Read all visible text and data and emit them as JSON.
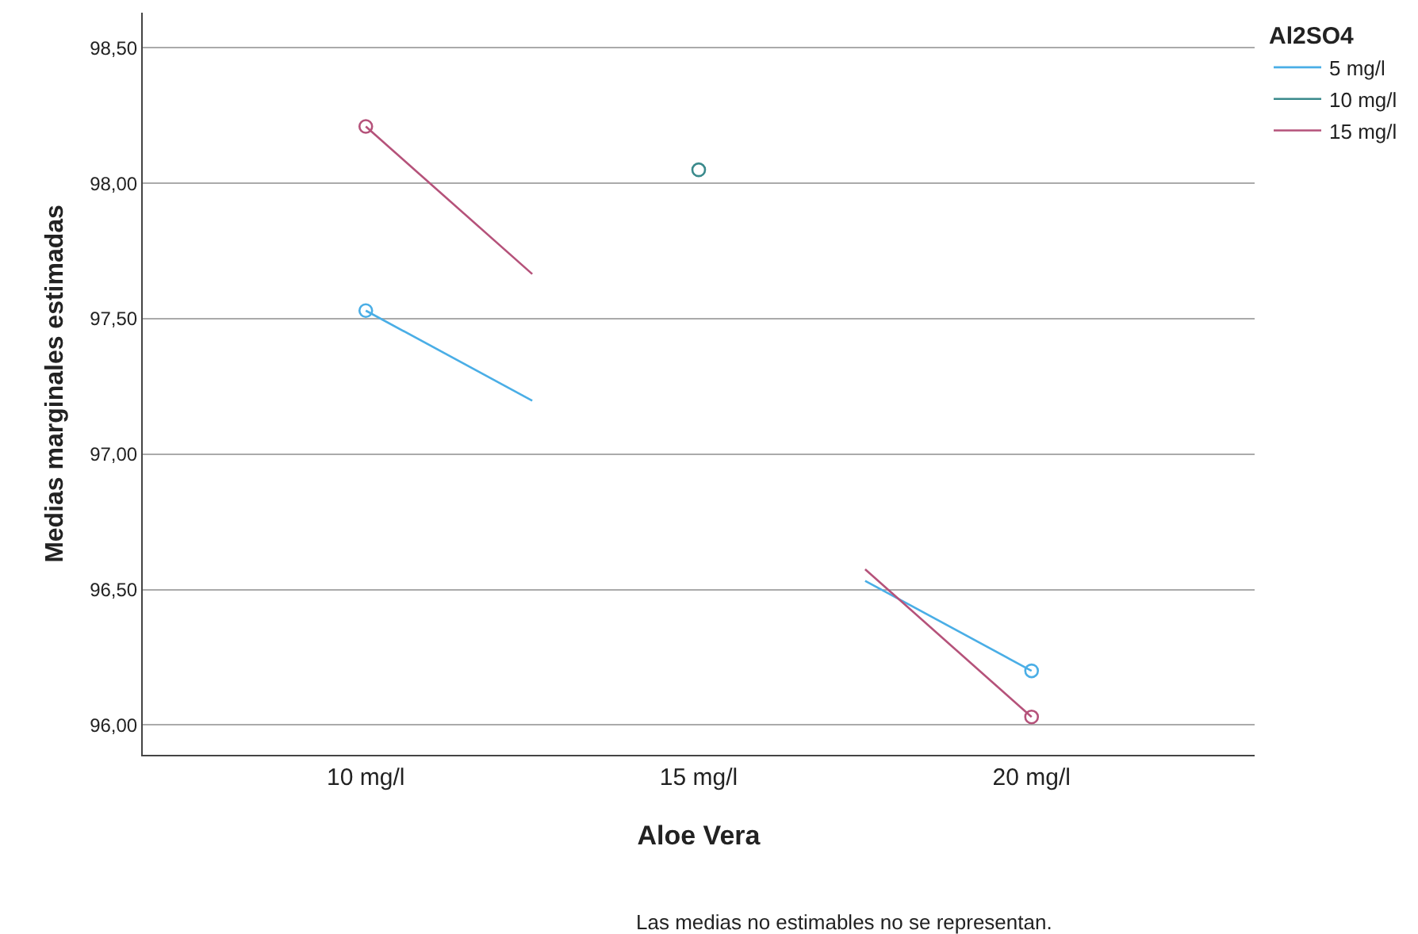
{
  "chart_data": {
    "type": "line",
    "xlabel": "Aloe Vera",
    "ylabel": "Medias marginales estimadas",
    "legend_title": "Al2SO4",
    "categories": [
      "10 mg/l",
      "15 mg/l",
      "20 mg/l"
    ],
    "series": [
      {
        "name": "5 mg/l",
        "color": "#4aaee6",
        "values": [
          97.53,
          null,
          96.2
        ]
      },
      {
        "name": "10 mg/l",
        "color": "#3a8a8c",
        "values": [
          null,
          98.05,
          null
        ]
      },
      {
        "name": "15 mg/l",
        "color": "#b5527a",
        "values": [
          98.21,
          null,
          96.03
        ]
      }
    ],
    "ylim": [
      95.89,
      98.63
    ],
    "yticks": [
      {
        "value": 96,
        "label": "96,00"
      },
      {
        "value": 96.5,
        "label": "96,50"
      },
      {
        "value": 97,
        "label": "97,00"
      },
      {
        "value": 97.5,
        "label": "97,50"
      },
      {
        "value": 98,
        "label": "98,00"
      },
      {
        "value": 98.5,
        "label": "98,50"
      }
    ],
    "grid": "y",
    "legend": "top right",
    "marker": "circle",
    "annotations": [
      "Las medias no estimables no se representan."
    ]
  }
}
